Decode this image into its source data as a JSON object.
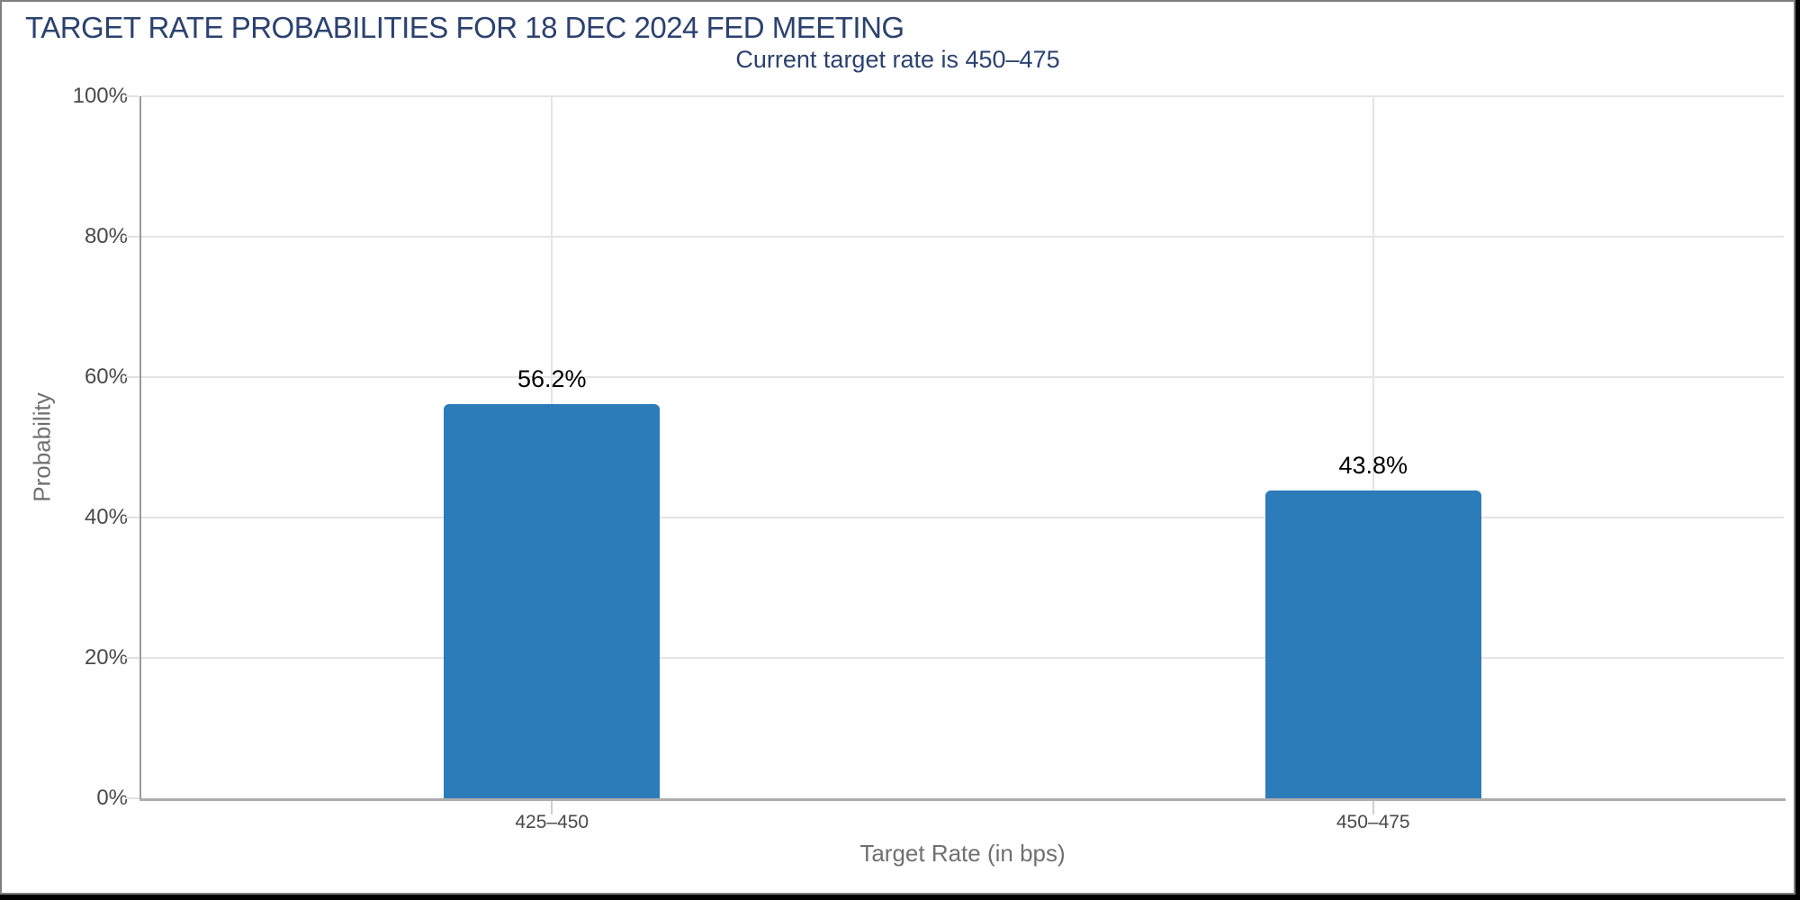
{
  "title": "TARGET RATE PROBABILITIES FOR 18 DEC 2024 FED MEETING",
  "subtitle": "Current target rate is 450–475",
  "chart_data": {
    "type": "bar",
    "title": "TARGET RATE PROBABILITIES FOR 18 DEC 2024 FED MEETING",
    "subtitle": "Current target rate is 450–475",
    "categories": [
      "425–450",
      "450–475"
    ],
    "values": [
      56.2,
      43.8
    ],
    "value_labels": [
      "56.2%",
      "43.8%"
    ],
    "xlabel": "Target Rate (in bps)",
    "ylabel": "Probability",
    "ylim": [
      0,
      100
    ],
    "ytick_step": 20,
    "ytick_labels": [
      "0%",
      "20%",
      "40%",
      "60%",
      "80%",
      "100%"
    ],
    "grid": true,
    "legend_position": "none",
    "bar_color": "#2b7cb8"
  },
  "colors": {
    "heading": "#2b4270",
    "bar": "#2b7cb8",
    "gridline": "#e4e4e4",
    "y_axis_line": "#9b9b9b",
    "x_axis_line": "#adadad",
    "tick_label": "#4a4a4a",
    "axis_title": "#707070",
    "value_label": "#000000",
    "frame_border": "#7f7f7f",
    "frame_outer": "#000000"
  }
}
